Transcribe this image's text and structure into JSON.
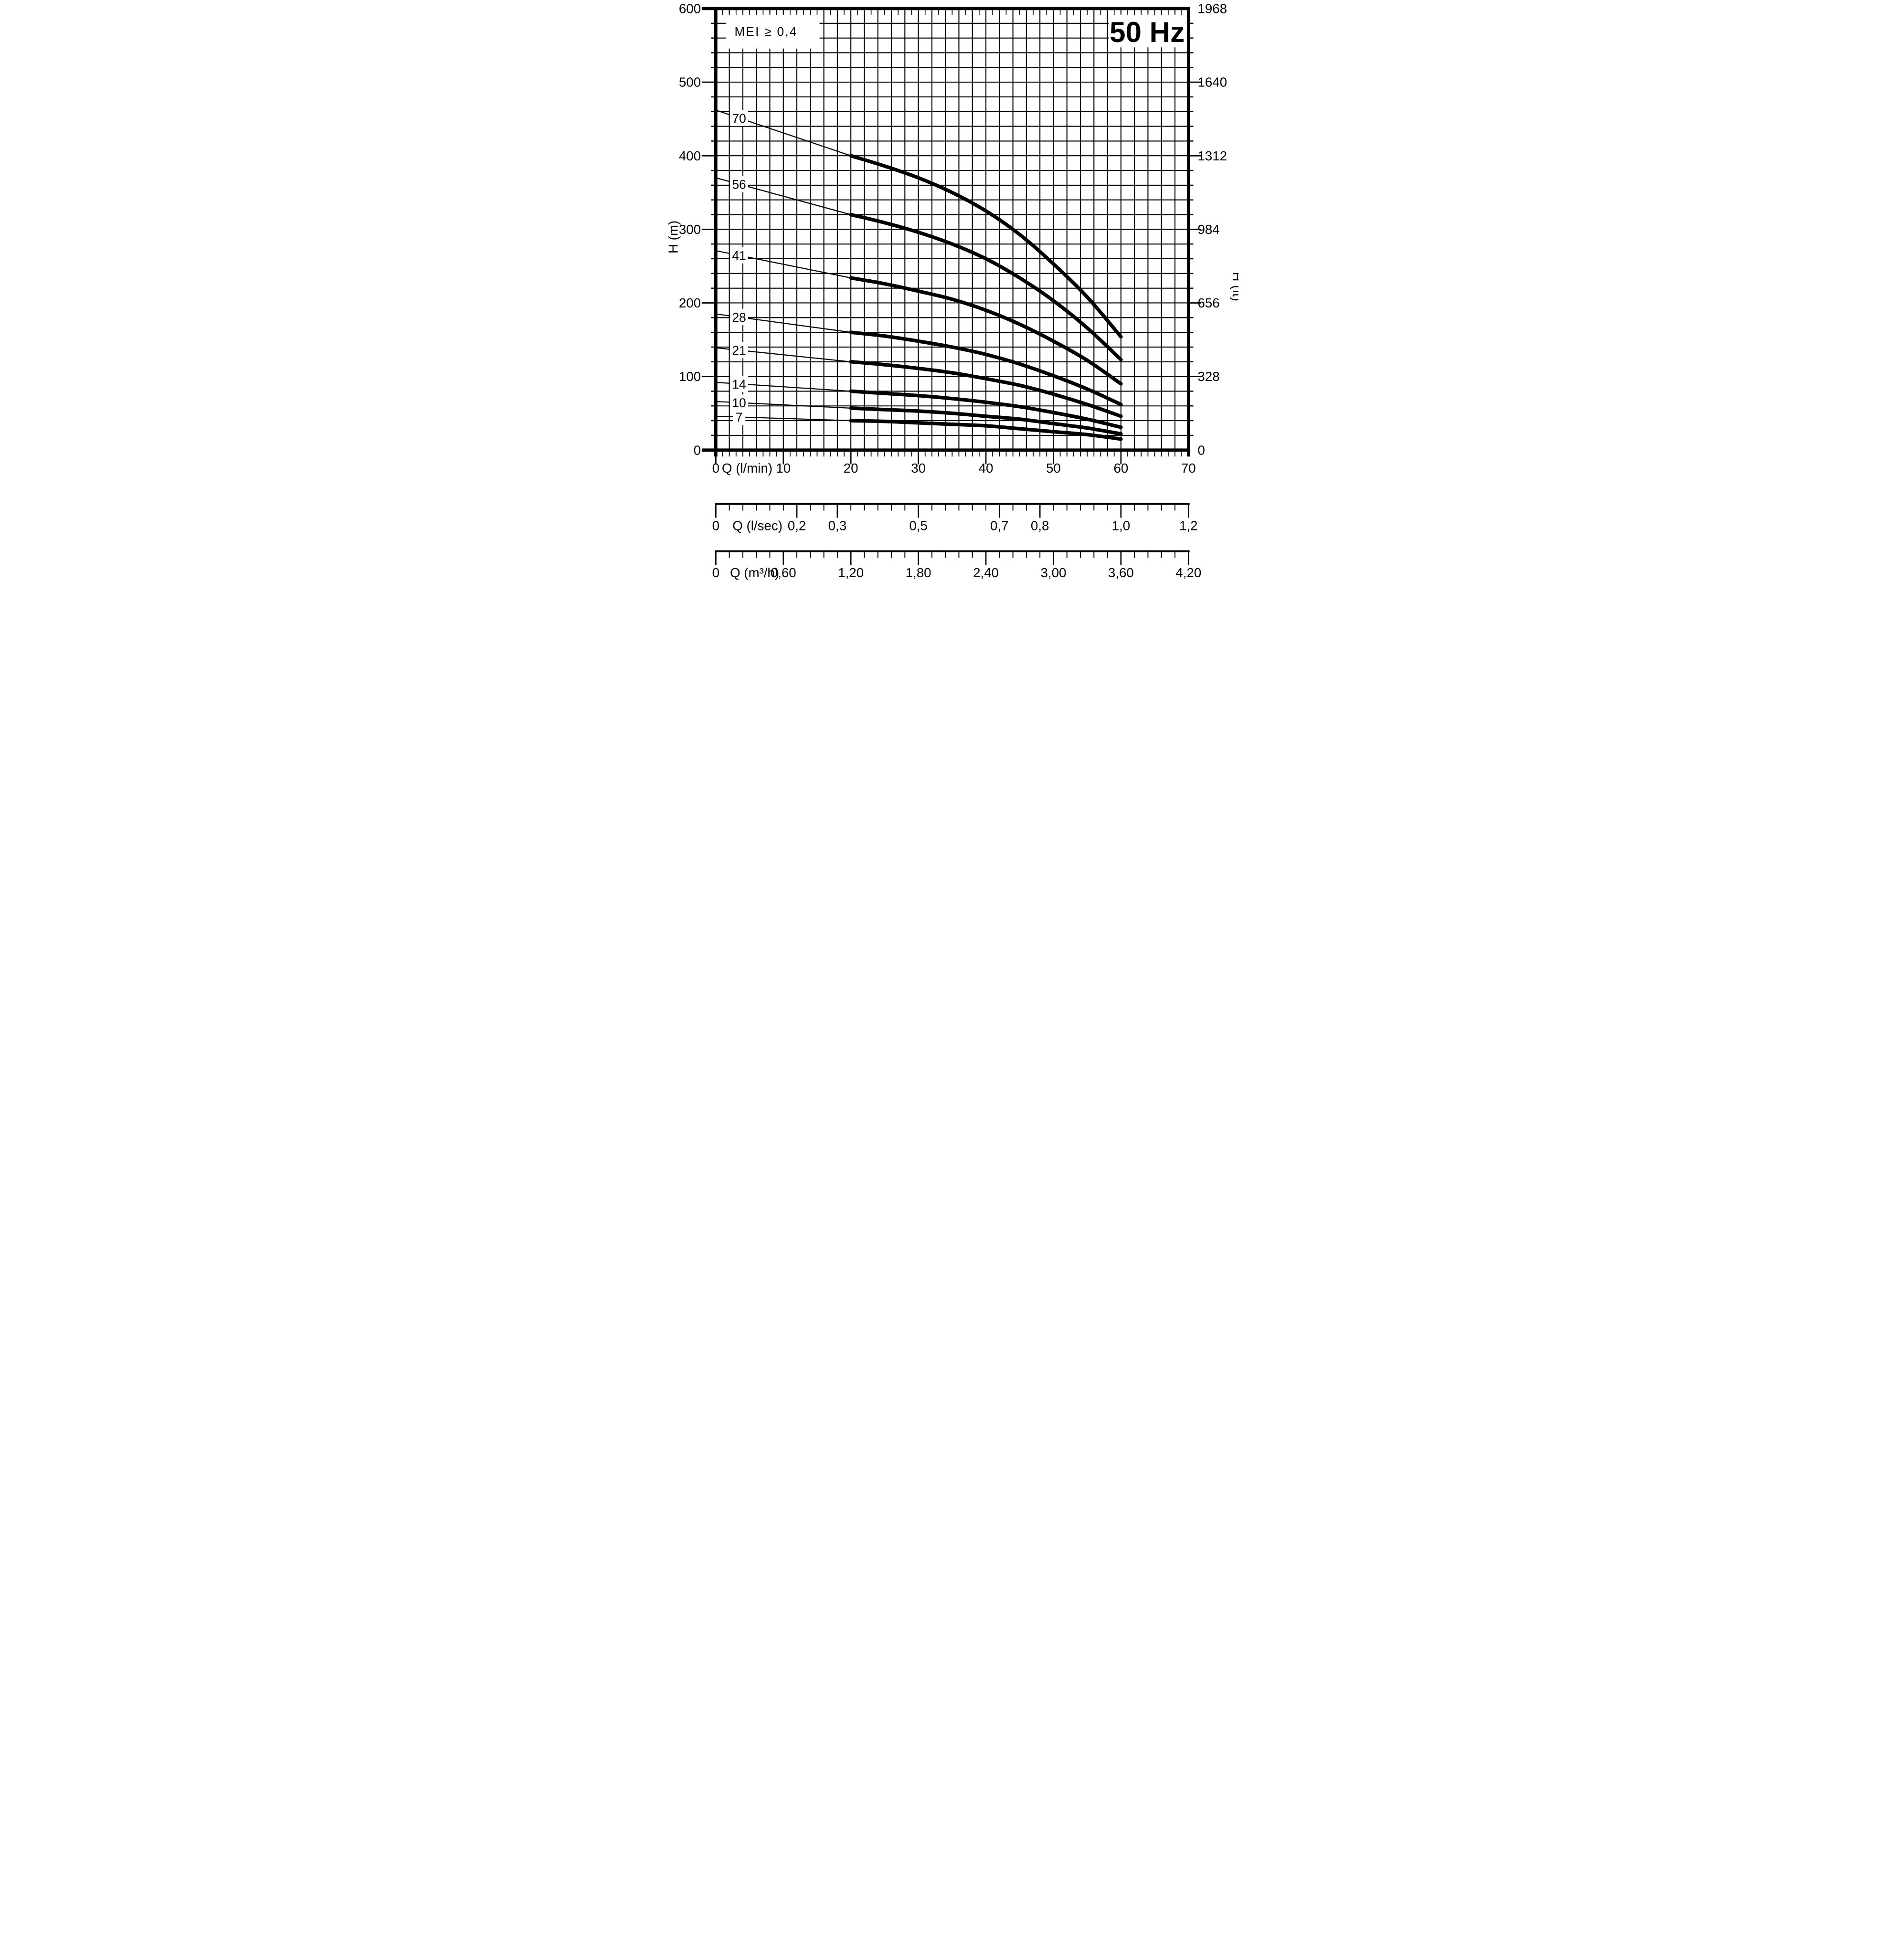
{
  "chart_data": {
    "type": "line",
    "title": "50 Hz",
    "efficiency_badge": "MEI ≥ 0,4",
    "colors": {
      "ink": "#000000",
      "background": "#ffffff"
    },
    "grid": {
      "x_step_lmin": 2,
      "y_step_m": 20,
      "on": true
    },
    "axes": {
      "y_left": {
        "label": "H (m)",
        "range": [
          0,
          600
        ],
        "major_ticks": [
          0,
          100,
          200,
          300,
          400,
          500,
          600
        ],
        "tick_labels": [
          "0",
          "100",
          "200",
          "300",
          "400",
          "500",
          "600"
        ]
      },
      "y_right": {
        "label": "H (ft)",
        "range": [
          0,
          1968
        ],
        "major_ticks": [
          0,
          328,
          656,
          984,
          1312,
          1640,
          1968
        ],
        "tick_labels": [
          "0",
          "328",
          "656",
          "984",
          "1312",
          "1640",
          "1968"
        ]
      },
      "x_lmin": {
        "label": "Q (l/min)",
        "range": [
          0,
          70
        ],
        "major_ticks": [
          0,
          10,
          20,
          30,
          40,
          50,
          60,
          70
        ],
        "tick_labels": [
          "0",
          "10",
          "20",
          "30",
          "40",
          "50",
          "60",
          "70"
        ]
      },
      "x_lsec": {
        "label": "Q (l/sec)",
        "tick_labels": [
          "0",
          "0,2",
          "0,3",
          "0,5",
          "0,7",
          "0,8",
          "1,0",
          "1,2"
        ],
        "positions_lmin": [
          0,
          12,
          18,
          30,
          42,
          48,
          60,
          70
        ]
      },
      "x_m3h": {
        "label": "Q (m³/h)",
        "tick_labels": [
          "0",
          "0,60",
          "1,20",
          "1,80",
          "2,40",
          "3,00",
          "3,60",
          "4,20"
        ],
        "positions_lmin": [
          0,
          10,
          20,
          30,
          40,
          50,
          60,
          70
        ]
      }
    },
    "series_q_lmin": [
      0,
      20,
      25,
      30,
      35,
      40,
      45,
      50,
      55,
      60
    ],
    "thin_segment_q": [
      0,
      20
    ],
    "thick_segment_q": [
      20,
      60
    ],
    "series": [
      {
        "label": "70",
        "stages": 70,
        "H_m": [
          462,
          400,
          386,
          370,
          350,
          325,
          293,
          253,
          208,
          154
        ]
      },
      {
        "label": "56",
        "stages": 56,
        "H_m": [
          370,
          320,
          309,
          296,
          280,
          260,
          234,
          203,
          166,
          123
        ]
      },
      {
        "label": "41",
        "stages": 41,
        "H_m": [
          271,
          234,
          226,
          216,
          205,
          190,
          171,
          148,
          122,
          90
        ]
      },
      {
        "label": "28",
        "stages": 28,
        "H_m": [
          185,
          160,
          155,
          148,
          140,
          130,
          117,
          101,
          83,
          62
        ]
      },
      {
        "label": "21",
        "stages": 21,
        "H_m": [
          139,
          120,
          116,
          111,
          105,
          97,
          88,
          76,
          62,
          46
        ]
      },
      {
        "label": "14",
        "stages": 14,
        "H_m": [
          92,
          80,
          77,
          74,
          70,
          65,
          59,
          51,
          42,
          31
        ]
      },
      {
        "label": "10",
        "stages": 10,
        "H_m": [
          66,
          57,
          55,
          53,
          50,
          46,
          42,
          36,
          30,
          22
        ]
      },
      {
        "label": "7",
        "stages": 7,
        "H_m": [
          46,
          40,
          39,
          37,
          35,
          33,
          29,
          25,
          21,
          15
        ]
      }
    ],
    "legend_position": "labels-on-curves"
  }
}
